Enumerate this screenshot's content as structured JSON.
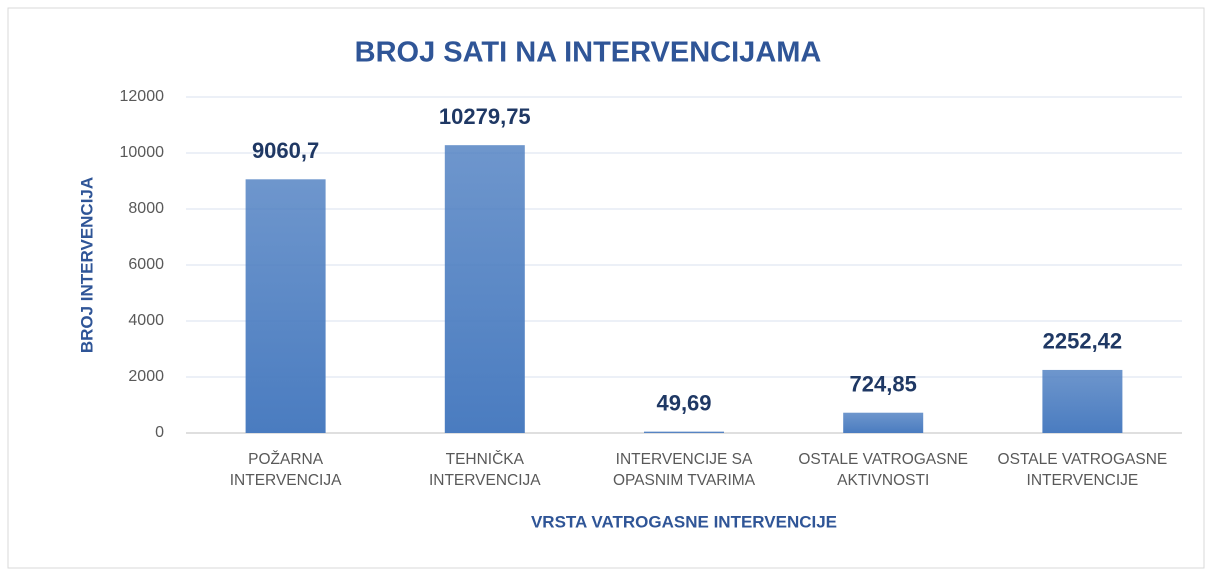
{
  "chart_data": {
    "type": "bar",
    "title": "BROJ SATI NA INTERVENCIJAMA",
    "x_label": "VRSTA VATROGASNE INTERVENCIJE",
    "y_label": "BROJ INTERVENCIJA",
    "categories": [
      "POŽARNA INTERVENCIJA",
      "TEHNIČKA INTERVENCIJA",
      "INTERVENCIJE SA OPASNIM TVARIMA",
      "OSTALE VATROGASNE AKTIVNOSTI",
      "OSTALE VATROGASNE INTERVENCIJE"
    ],
    "values": [
      9060.7,
      10279.75,
      49.69,
      724.85,
      2252.42
    ],
    "value_labels": [
      "9060,7",
      "10279,75",
      "49,69",
      "724,85",
      "2252,42"
    ],
    "color": "#4a7cc0",
    "ylim": [
      0,
      12000
    ],
    "yticks": [
      0,
      2000,
      4000,
      6000,
      8000,
      10000,
      12000
    ],
    "grid": true
  }
}
